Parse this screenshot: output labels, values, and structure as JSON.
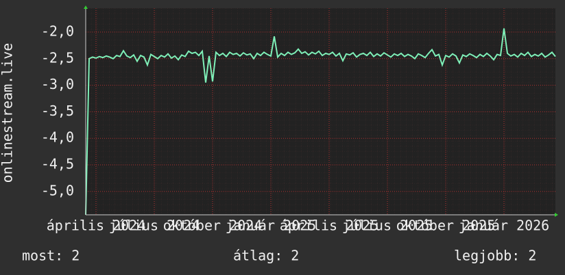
{
  "chart_data": {
    "type": "line",
    "y_label": "onlinestream.live",
    "values": [
      -5.44,
      -2.5,
      -2.47,
      -2.49,
      -2.46,
      -2.48,
      -2.45,
      -2.47,
      -2.5,
      -2.44,
      -2.46,
      -2.35,
      -2.45,
      -2.48,
      -2.43,
      -2.55,
      -2.44,
      -2.47,
      -2.62,
      -2.42,
      -2.46,
      -2.5,
      -2.44,
      -2.47,
      -2.41,
      -2.49,
      -2.45,
      -2.52,
      -2.43,
      -2.46,
      -2.36,
      -2.4,
      -2.38,
      -2.44,
      -2.36,
      -2.95,
      -2.45,
      -2.93,
      -2.38,
      -2.44,
      -2.4,
      -2.46,
      -2.38,
      -2.42,
      -2.4,
      -2.45,
      -2.39,
      -2.43,
      -2.41,
      -2.5,
      -2.4,
      -2.44,
      -2.38,
      -2.42,
      -2.45,
      -2.08,
      -2.47,
      -2.4,
      -2.44,
      -2.38,
      -2.42,
      -2.39,
      -2.32,
      -2.4,
      -2.37,
      -2.43,
      -2.38,
      -2.41,
      -2.36,
      -2.44,
      -2.4,
      -2.42,
      -2.38,
      -2.45,
      -2.4,
      -2.54,
      -2.41,
      -2.43,
      -2.39,
      -2.47,
      -2.42,
      -2.4,
      -2.44,
      -2.38,
      -2.46,
      -2.41,
      -2.45,
      -2.39,
      -2.43,
      -2.47,
      -2.41,
      -2.44,
      -2.4,
      -2.46,
      -2.42,
      -2.45,
      -2.5,
      -2.41,
      -2.44,
      -2.48,
      -2.4,
      -2.33,
      -2.45,
      -2.42,
      -2.62,
      -2.44,
      -2.47,
      -2.41,
      -2.45,
      -2.58,
      -2.43,
      -2.46,
      -2.41,
      -2.44,
      -2.48,
      -2.42,
      -2.46,
      -2.4,
      -2.45,
      -2.52,
      -2.42,
      -2.44,
      -1.93,
      -2.4,
      -2.45,
      -2.42,
      -2.47,
      -2.4,
      -2.44,
      -2.38,
      -2.46,
      -2.42,
      -2.45,
      -2.4,
      -2.47,
      -2.43,
      -2.38,
      -2.46
    ],
    "color": "#7ff0b8",
    "xlim": [
      0,
      137
    ],
    "xticks": [
      {
        "value": 3,
        "label": "április 2024"
      },
      {
        "value": 20,
        "label": "július 2024"
      },
      {
        "value": 37,
        "label": "október 2024"
      },
      {
        "value": 54,
        "label": "január 2025"
      },
      {
        "value": 71,
        "label": "április 2025"
      },
      {
        "value": 88,
        "label": "július 2025"
      },
      {
        "value": 105,
        "label": "október 2025"
      },
      {
        "value": 122,
        "label": "január 2026"
      }
    ],
    "ylim": [
      -5.44,
      -1.55
    ],
    "yticks": [
      {
        "value": -2,
        "label": "-2,0"
      },
      {
        "value": -2.5,
        "label": "-2,5"
      },
      {
        "value": -3,
        "label": "-3,0"
      },
      {
        "value": -3.5,
        "label": "-3,5"
      },
      {
        "value": -4,
        "label": "-4,0"
      },
      {
        "value": -4.5,
        "label": "-4,5"
      },
      {
        "value": -5,
        "label": "-5,0"
      }
    ],
    "grid": true,
    "footer": [
      "most: 2",
      "átlag: 2",
      "legjobb: 2"
    ]
  }
}
